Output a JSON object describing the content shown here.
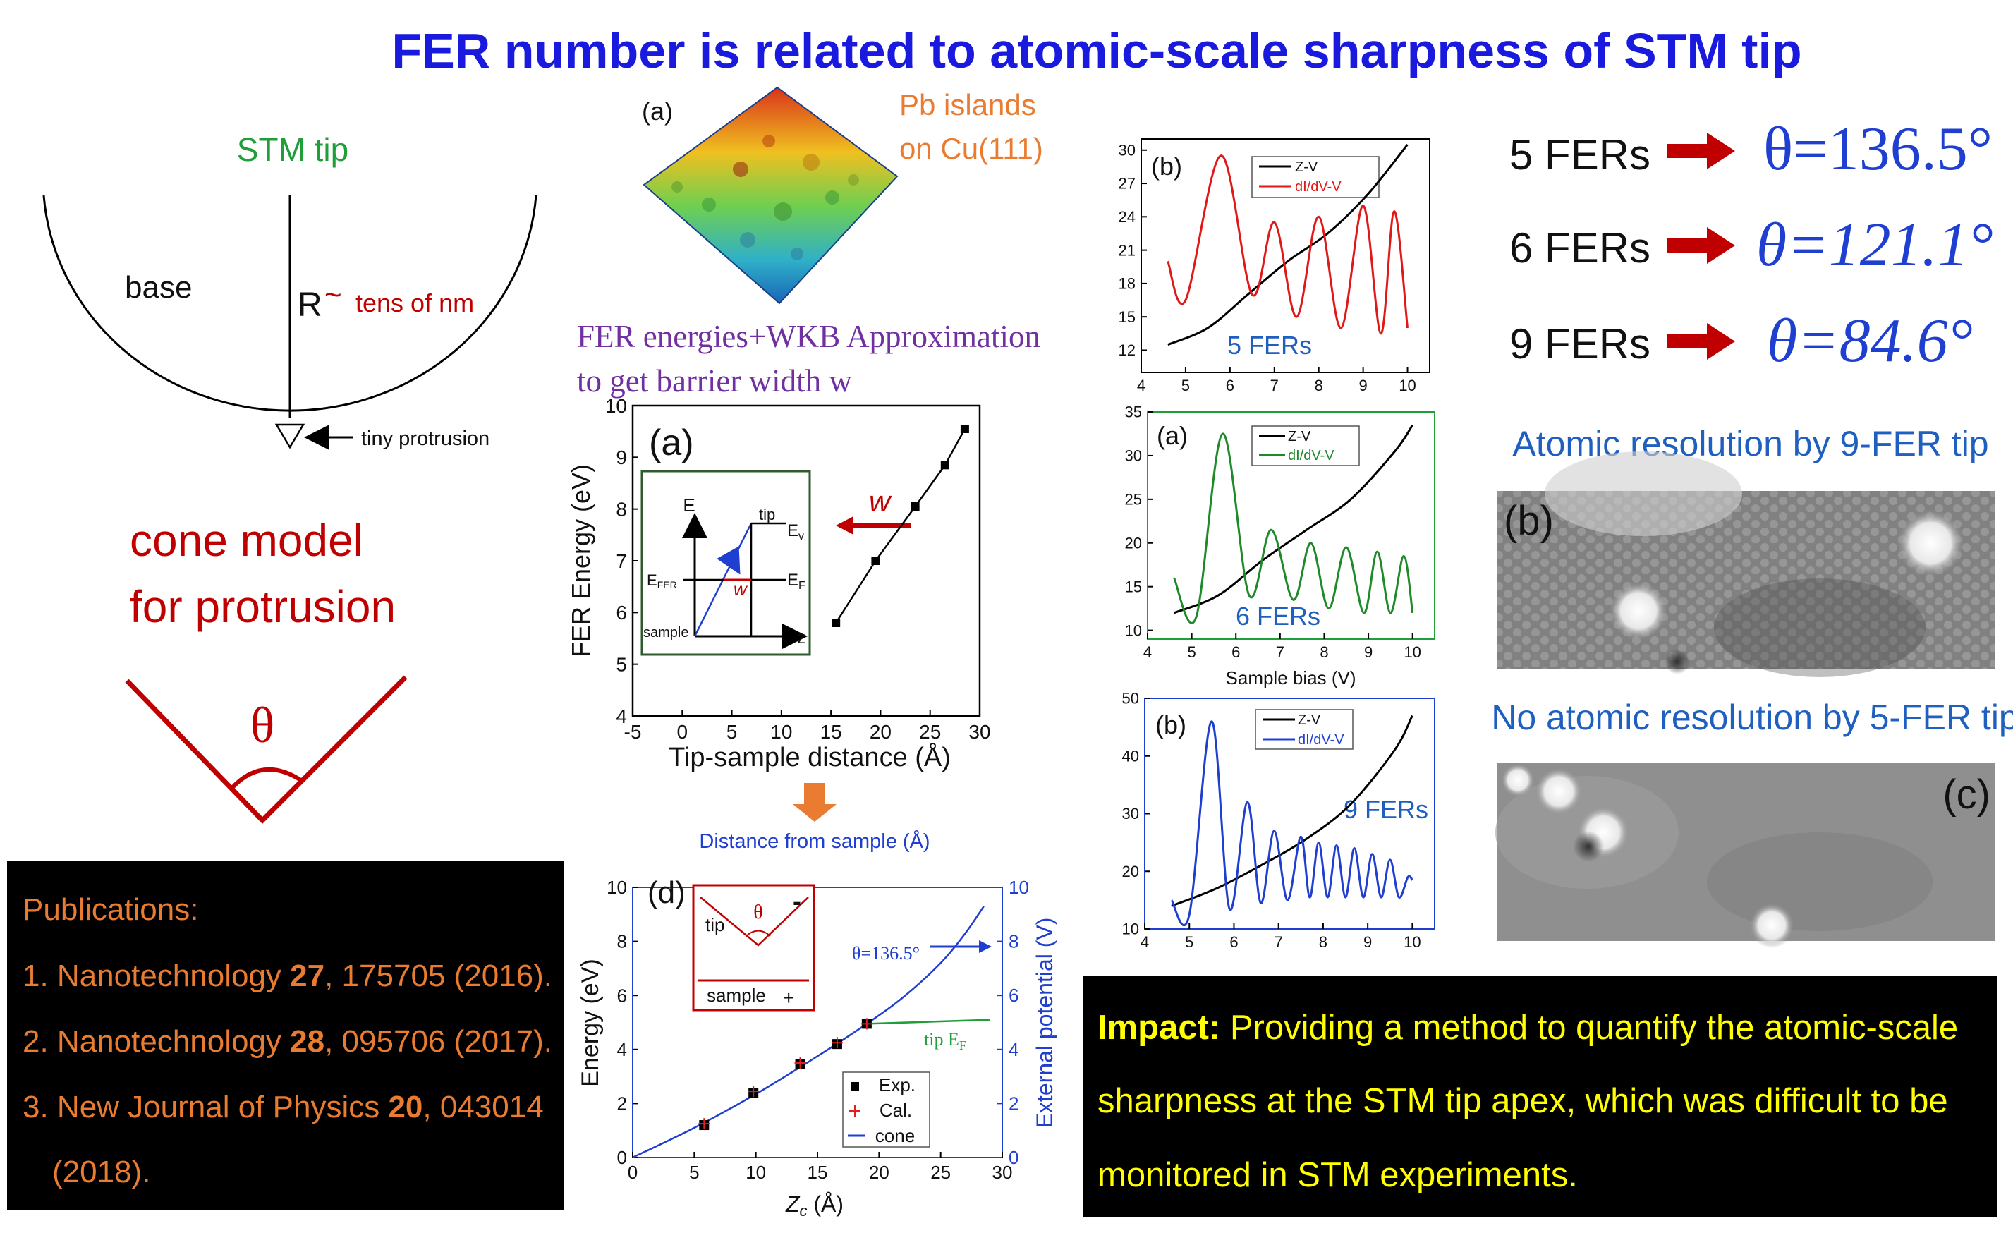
{
  "title": "FER number is related to atomic-scale sharpness of STM tip",
  "tip_diagram": {
    "tip_label": "STM tip",
    "base_label": "base",
    "r_label": "R",
    "tilde": "~",
    "r_value": "tens of nm",
    "protrusion_label": "tiny protrusion"
  },
  "cone_model": {
    "line1": "cone model",
    "line2": "for protrusion",
    "theta": "θ"
  },
  "publications": {
    "heading": "Publications:",
    "items": [
      {
        "pre": "1. Nanotechnology ",
        "vol": "27",
        "post": ", 175705 (2016)."
      },
      {
        "pre": "2. Nanotechnology ",
        "vol": "28",
        "post": ", 095706 (2017)."
      },
      {
        "pre": "3. New Journal of Physics ",
        "vol": "20",
        "post": ", 043014"
      }
    ],
    "item3_cont": "(2018)."
  },
  "stm_image": {
    "label": "(a)",
    "caption_line1": "Pb islands",
    "caption_line2": "on Cu(111)"
  },
  "wkb_text": {
    "line1": "FER energies+WKB Approximation",
    "line2": "to get barrier width w"
  },
  "colors": {
    "title": "#1a1adf",
    "green": "#1f9e3a",
    "red": "#c00000",
    "orange": "#e97c30",
    "purple": "#7030a0",
    "blue": "#1f5fbf",
    "arrow_red": "#c00000",
    "yellow": "#ffff00"
  },
  "chart_data": [
    {
      "id": "fer-vs-distance",
      "type": "line",
      "panel_label": "(a)",
      "xlabel": "Tip-sample distance (Å)",
      "ylabel": "FER Energy (eV)",
      "xlim": [
        -5,
        30
      ],
      "ylim": [
        4,
        10
      ],
      "xticks": [
        "-5",
        "0",
        "5",
        "10",
        "15",
        "20",
        "25",
        "30"
      ],
      "yticks": [
        "4",
        "5",
        "6",
        "7",
        "8",
        "9",
        "10"
      ],
      "x": [
        15.5,
        19.5,
        23.5,
        26.5,
        28.5
      ],
      "y": [
        5.8,
        7.0,
        8.05,
        8.85,
        9.55
      ],
      "annotation": "w",
      "inset": {
        "E": "E",
        "tip": "tip",
        "Ev_main": "E",
        "Ev_sub": "v",
        "EF_main": "E",
        "EF_sub": "F",
        "EFER_main": "E",
        "EFER_sub": "FER",
        "w": "w",
        "sample": "sample",
        "z": "z"
      }
    },
    {
      "id": "energy-vs-zc",
      "type": "scatter",
      "panel_label": "(d)",
      "top_label": "Distance from sample (Å)",
      "xlabel_main": "Z",
      "xlabel_sub": "c",
      "xlabel_post": " (Å)",
      "ylabel": "Energy (eV)",
      "ylabel_right": "External potential (V)",
      "xlim": [
        0,
        30
      ],
      "ylim": [
        0,
        10
      ],
      "xticks": [
        "0",
        "5",
        "10",
        "15",
        "20",
        "25",
        "30"
      ],
      "yticks": [
        "0",
        "2",
        "4",
        "6",
        "8",
        "10"
      ],
      "series": [
        {
          "name": "Exp.",
          "x": [
            5.8,
            9.8,
            13.6,
            16.6,
            19.0
          ],
          "y": [
            1.2,
            2.4,
            3.45,
            4.2,
            4.95
          ]
        },
        {
          "name": "Cal.",
          "x": [
            5.8,
            9.8,
            13.6,
            16.6,
            19.0
          ],
          "y": [
            1.25,
            2.45,
            3.5,
            4.25,
            4.95
          ]
        },
        {
          "name": "cone",
          "x": [
            0,
            5,
            10,
            15,
            19,
            22,
            25,
            27,
            28.5
          ],
          "y": [
            0,
            1.1,
            2.35,
            3.75,
            4.95,
            5.95,
            7.2,
            8.3,
            9.3
          ]
        },
        {
          "name": "tip EF",
          "x": [
            19,
            29
          ],
          "y": [
            4.95,
            5.1
          ]
        }
      ],
      "theta_label": "θ=136.5°",
      "tip_ef_main": "tip E",
      "tip_ef_sub": "F",
      "inset": {
        "tip": "tip",
        "theta": "θ",
        "minus": "-",
        "sample": "sample",
        "plus": "+"
      }
    },
    {
      "id": "spectra-5fer",
      "type": "line",
      "panel_label": "(b)",
      "count_label": "5 FERs",
      "xlim": [
        4,
        10.5
      ],
      "ylim": [
        10,
        31
      ],
      "xticks": [
        "4",
        "5",
        "6",
        "7",
        "8",
        "9",
        "10"
      ],
      "yticks": [
        "12",
        "15",
        "18",
        "21",
        "24",
        "27",
        "30"
      ],
      "series": [
        {
          "name": "Z-V",
          "x": [
            4.6,
            5.5,
            6.4,
            7.3,
            8.2,
            9.1,
            10.0
          ],
          "y": [
            12.5,
            14.0,
            17.0,
            20.0,
            22.5,
            26.0,
            30.5
          ]
        },
        {
          "name": "dI/dV-V",
          "x": [
            4.6,
            5.0,
            5.8,
            6.5,
            7.0,
            7.5,
            8.0,
            8.5,
            9.0,
            9.4,
            9.7,
            10.0
          ],
          "y": [
            20.0,
            16.5,
            29.5,
            17.0,
            23.5,
            15.0,
            24.0,
            14.0,
            25.0,
            13.5,
            24.5,
            14.0
          ]
        }
      ]
    },
    {
      "id": "spectra-6fer",
      "type": "line",
      "panel_label": "(a)",
      "count_label": "6 FERs",
      "xlabel": "Sample bias (V)",
      "xlim": [
        4,
        10.5
      ],
      "ylim": [
        9,
        35
      ],
      "xticks": [
        "4",
        "5",
        "6",
        "7",
        "8",
        "9",
        "10"
      ],
      "yticks": [
        "10",
        "15",
        "20",
        "25",
        "30",
        "35"
      ],
      "series": [
        {
          "name": "Z-V",
          "x": [
            4.6,
            5.6,
            6.6,
            7.6,
            8.6,
            9.6,
            10.0
          ],
          "y": [
            12.0,
            14.0,
            18.0,
            21.5,
            25.0,
            30.5,
            33.5
          ]
        },
        {
          "name": "dI/dV-V",
          "x": [
            4.6,
            5.1,
            5.7,
            6.3,
            6.8,
            7.3,
            7.7,
            8.1,
            8.5,
            8.9,
            9.2,
            9.5,
            9.8,
            10.0
          ],
          "y": [
            16.0,
            11.5,
            32.5,
            14.0,
            21.5,
            13.5,
            20.0,
            12.5,
            19.5,
            12.0,
            19.0,
            12.0,
            18.5,
            12.0
          ]
        }
      ]
    },
    {
      "id": "spectra-9fer",
      "type": "line",
      "panel_label": "(b)",
      "count_label": "9 FERs",
      "xlim": [
        4,
        10.5
      ],
      "ylim": [
        10,
        50
      ],
      "xticks": [
        "4",
        "5",
        "6",
        "7",
        "8",
        "9",
        "10"
      ],
      "yticks": [
        "10",
        "20",
        "30",
        "40",
        "50"
      ],
      "series": [
        {
          "name": "Z-V",
          "x": [
            4.6,
            5.6,
            6.6,
            7.6,
            8.6,
            9.6,
            10.0
          ],
          "y": [
            14.0,
            17.0,
            21.0,
            25.5,
            31.5,
            41.0,
            47.0
          ]
        },
        {
          "name": "dI/dV-V",
          "x": [
            4.6,
            5.0,
            5.5,
            5.9,
            6.3,
            6.6,
            6.9,
            7.2,
            7.5,
            7.7,
            7.9,
            8.1,
            8.3,
            8.5,
            8.7,
            8.9,
            9.1,
            9.3,
            9.5,
            9.7,
            9.9,
            10.0
          ],
          "y": [
            15.0,
            12.5,
            46.0,
            13.5,
            32.0,
            14.5,
            27.0,
            15.0,
            26.0,
            15.5,
            25.0,
            15.5,
            24.5,
            15.5,
            24.0,
            15.5,
            23.0,
            15.5,
            22.0,
            15.5,
            19.0,
            18.5
          ]
        }
      ]
    }
  ],
  "results": [
    {
      "fers": "5 FERs",
      "theta": "θ=136.5°"
    },
    {
      "fers": "6 FERs",
      "theta": "θ=121.1°"
    },
    {
      "fers": "9 FERs",
      "theta": "θ=84.6°"
    }
  ],
  "atomic": {
    "res_label": "Atomic resolution by 9-FER tip",
    "img_b_label": "(b)",
    "nores_label": "No atomic resolution by 5-FER tip",
    "img_c_label": "(c)"
  },
  "impact": {
    "label": "Impact:",
    "line1": " Providing a method to quantify the atomic-scale",
    "line2": "sharpness at the STM tip apex, which was difficult to be",
    "line3": "monitored in STM experiments."
  }
}
